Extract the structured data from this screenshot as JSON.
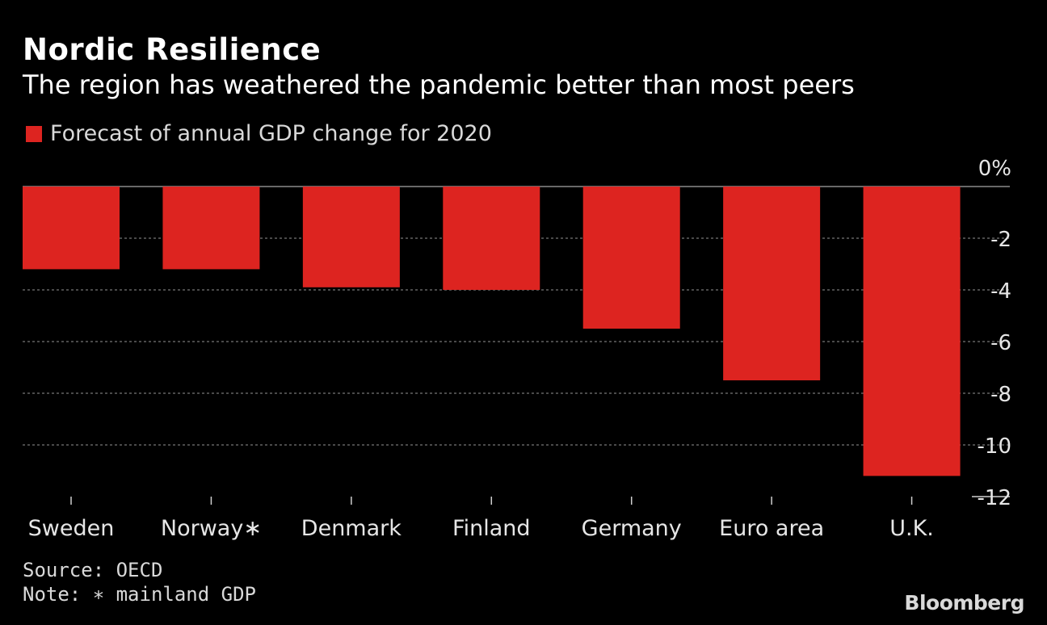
{
  "header": {
    "title": "Nordic Resilience",
    "subtitle": "The region has weathered the pandemic better than most peers"
  },
  "legend": {
    "label": "Forecast of annual GDP change for 2020"
  },
  "footer": {
    "source": "Source: OECD",
    "note": "Note: ∗ mainland GDP",
    "brand": "Bloomberg"
  },
  "colors": {
    "bar": "#dd2420",
    "background": "#000000",
    "grid": "#777777"
  },
  "chart_data": {
    "type": "bar",
    "title": "Nordic Resilience",
    "subtitle": "The region has weathered the pandemic better than most peers",
    "categories": [
      "Sweden",
      "Norway∗",
      "Denmark",
      "Finland",
      "Germany",
      "Euro area",
      "U.K."
    ],
    "series": [
      {
        "name": "Forecast of annual GDP change for 2020",
        "values": [
          -3.2,
          -3.2,
          -3.9,
          -4.0,
          -5.5,
          -7.5,
          -11.2
        ]
      }
    ],
    "ylim": [
      -12,
      0
    ],
    "yticks": [
      0,
      -2,
      -4,
      -6,
      -8,
      -10,
      -12
    ],
    "ytick_labels": [
      "0%",
      "-2",
      "-4",
      "-6",
      "-8",
      "-10",
      "-12"
    ],
    "y_axis_position": "right",
    "grid": true,
    "legend_position": "top-left"
  }
}
